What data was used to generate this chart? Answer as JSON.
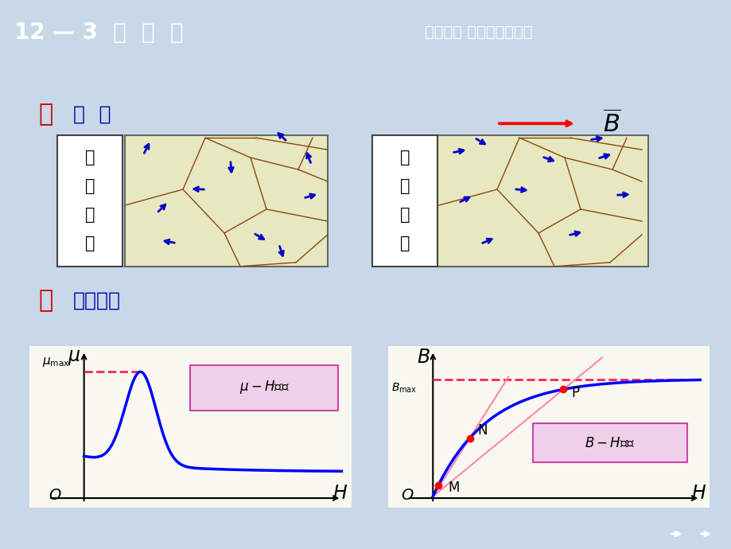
{
  "title_left": "12 — 3  铁  磁  质",
  "title_right": "第十二章 磁场中的磁介质",
  "header_bg": "#0000CC",
  "header_text_color": "#FFFFFF",
  "bg_color": "#C8D8E8",
  "section1_label": "一",
  "section1_title": "磁  畴",
  "section2_label": "二",
  "section2_title": "磁化曲线",
  "left_box_chars": [
    "无",
    "外",
    "磁",
    "场"
  ],
  "right_box_chars": [
    "有",
    "外",
    "磁",
    "场"
  ],
  "domain_bg": "#E8E8C0",
  "domain_border": "#8B4513",
  "footer_bg": "#0000AA",
  "plot_bg": "#F8F8F0",
  "label_box_color": "#F0D0E8",
  "label_box_edge": "#CC44AA"
}
